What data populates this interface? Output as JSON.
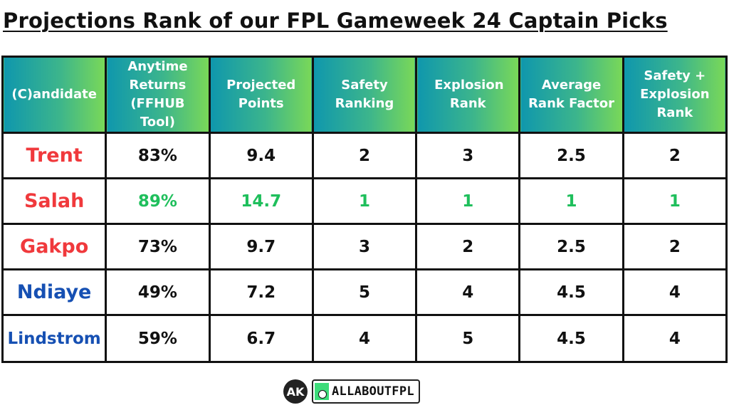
{
  "title": "Projections Rank of our FPL Gameweek 24 Captain Picks",
  "table": {
    "headers": [
      "(C)andidate",
      "Anytime Returns (FFHUB Tool)",
      "Projected Points",
      "Safety Ranking",
      "Explosion Rank",
      "Average Rank Factor",
      "Safety + Explosion Rank"
    ],
    "header_gradient": [
      "#0f97ad",
      "#7ad858"
    ],
    "rows": [
      {
        "name": "Trent",
        "name_color": "#f0393c",
        "anytime_returns": "83%",
        "projected_points": "9.4",
        "safety_ranking": "2",
        "explosion_rank": "3",
        "average_rank_factor": "2.5",
        "safety_explosion_rank": "2",
        "highlight": false
      },
      {
        "name": "Salah",
        "name_color": "#f0393c",
        "anytime_returns": "89%",
        "projected_points": "14.7",
        "safety_ranking": "1",
        "explosion_rank": "1",
        "average_rank_factor": "1",
        "safety_explosion_rank": "1",
        "highlight": true,
        "highlight_color": "#1fbf5c"
      },
      {
        "name": "Gakpo",
        "name_color": "#f0393c",
        "anytime_returns": "73%",
        "projected_points": "9.7",
        "safety_ranking": "3",
        "explosion_rank": "2",
        "average_rank_factor": "2.5",
        "safety_explosion_rank": "2",
        "highlight": false
      },
      {
        "name": "Ndiaye",
        "name_color": "#1650b3",
        "anytime_returns": "49%",
        "projected_points": "7.2",
        "safety_ranking": "5",
        "explosion_rank": "4",
        "average_rank_factor": "4.5",
        "safety_explosion_rank": "4",
        "highlight": false
      },
      {
        "name": "Lindstrom",
        "name_color": "#1650b3",
        "anytime_returns": "59%",
        "projected_points": "6.7",
        "safety_ranking": "4",
        "explosion_rank": "5",
        "average_rank_factor": "4.5",
        "safety_explosion_rank": "4",
        "highlight": false
      }
    ]
  },
  "footer": {
    "logo_monogram": "AK",
    "brand_icon": "football-boot-icon",
    "brand_name": "ALLABOUTFPL"
  }
}
